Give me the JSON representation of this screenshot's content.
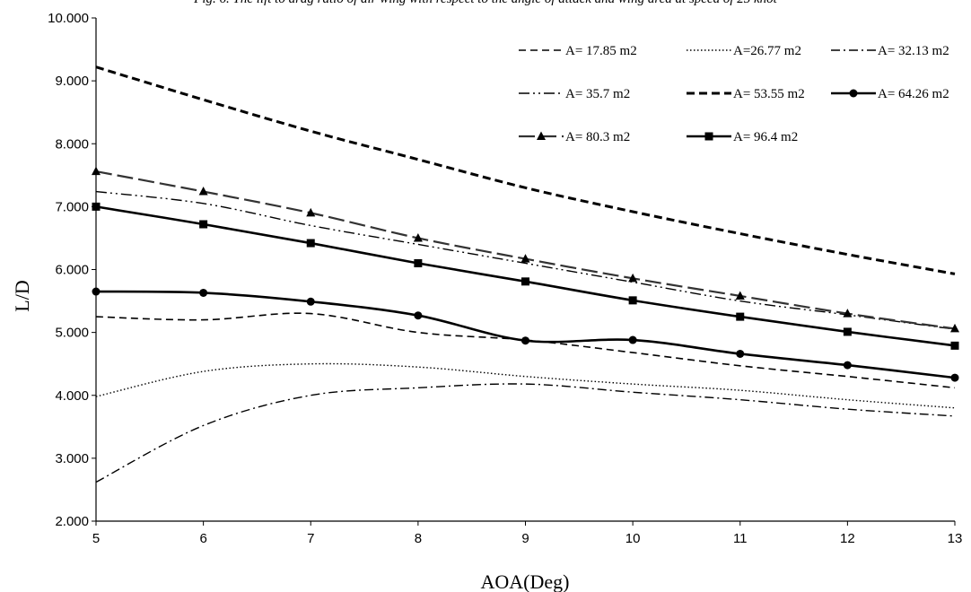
{
  "chart_data": {
    "type": "line",
    "title": "Fig. 6. The lift to drag ratio of air wing with respect to the angle of attack and wing area at speed of 25 knot",
    "xlabel": "AOA(Deg)",
    "ylabel": "L/D",
    "xlim": [
      5,
      13
    ],
    "ylim": [
      2.0,
      10.0
    ],
    "x_ticks": [
      "5",
      "6",
      "7",
      "8",
      "9",
      "10",
      "11",
      "12",
      "13"
    ],
    "y_ticks": [
      "2.000",
      "3.000",
      "4.000",
      "5.000",
      "6.000",
      "7.000",
      "8.000",
      "9.000",
      "10.000"
    ],
    "grid": false,
    "legend_position": "top-right",
    "x": [
      5,
      6,
      7,
      8,
      9,
      10,
      11,
      12,
      13
    ],
    "series": [
      {
        "name": "A= 17.85 m2",
        "style": "dashed-thin",
        "marker": "none",
        "values": [
          5.25,
          5.2,
          5.3,
          5.0,
          4.88,
          4.68,
          4.47,
          4.3,
          4.12
        ]
      },
      {
        "name": "A=26.77 m2",
        "style": "dotted",
        "marker": "none",
        "values": [
          3.98,
          4.38,
          4.5,
          4.45,
          4.3,
          4.18,
          4.08,
          3.93,
          3.8
        ]
      },
      {
        "name": "A= 32.13 m2",
        "style": "dash-dot",
        "marker": "none",
        "values": [
          2.62,
          3.52,
          4.0,
          4.12,
          4.18,
          4.05,
          3.93,
          3.78,
          3.67
        ]
      },
      {
        "name": "A= 35.7 m2",
        "style": "dash-dot-dot",
        "marker": "none",
        "values": [
          7.24,
          7.05,
          6.7,
          6.4,
          6.1,
          5.8,
          5.5,
          5.28,
          5.05
        ]
      },
      {
        "name": "A= 53.55 m2",
        "style": "dashed-thick",
        "marker": "none",
        "values": [
          9.22,
          8.7,
          8.2,
          7.75,
          7.3,
          6.92,
          6.57,
          6.24,
          5.93
        ]
      },
      {
        "name": "A= 64.26 m2",
        "style": "solid",
        "marker": "circle",
        "values": [
          5.65,
          5.63,
          5.49,
          5.27,
          4.87,
          4.88,
          4.66,
          4.48,
          4.28
        ]
      },
      {
        "name": "A= 80.3 m2",
        "style": "long-dash",
        "marker": "triangle",
        "values": [
          7.56,
          7.24,
          6.9,
          6.5,
          6.17,
          5.86,
          5.58,
          5.3,
          5.06
        ]
      },
      {
        "name": "A= 96.4 m2",
        "style": "solid",
        "marker": "square",
        "values": [
          7.0,
          6.72,
          6.42,
          6.1,
          5.81,
          5.51,
          5.25,
          5.01,
          4.79
        ]
      }
    ]
  }
}
